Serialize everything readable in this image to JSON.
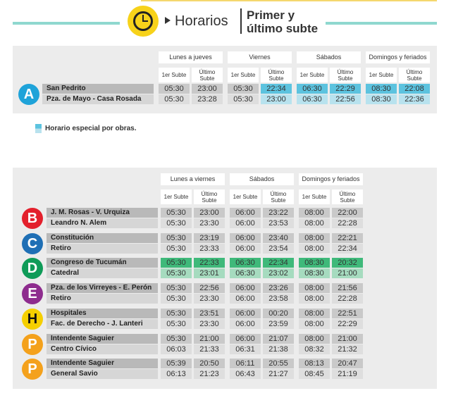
{
  "header": {
    "title": "Horarios",
    "subtitle": [
      "Primer y",
      "último subte"
    ]
  },
  "table1": {
    "groups": [
      "Lunes a jueves",
      "Viernes",
      "Sábados",
      "Domingos y feriados"
    ],
    "col_first": "1er Subte",
    "col_last": "Último Subte",
    "special_colors": [
      "#5cc3df",
      "#b8e2ee"
    ],
    "lines": [
      {
        "letter": "A",
        "color": "#1fa3d9",
        "letter_color": "#ffffff",
        "special_cells": [
          3,
          4,
          5,
          6,
          7
        ],
        "rows": [
          {
            "station": "San Pedrito",
            "times": [
              "05:30",
              "23:00",
              "05:30",
              "22:34",
              "06:30",
              "22:29",
              "08:30",
              "22:08"
            ]
          },
          {
            "station": "Pza. de Mayo - Casa Rosada",
            "times": [
              "05:30",
              "23:28",
              "05:30",
              "23:00",
              "06:30",
              "22:56",
              "08:30",
              "22:36"
            ]
          }
        ]
      }
    ],
    "legend": "Horario especial por obras."
  },
  "table2": {
    "groups": [
      "Lunes a viernes",
      "Sábados",
      "Domingos y feriados"
    ],
    "col_first": "1er Subte",
    "col_last": "Último Subte",
    "special_colors": [
      "#3fb97a",
      "#a6dbbf"
    ],
    "lines": [
      {
        "letter": "B",
        "color": "#e3202c",
        "letter_color": "#ffffff",
        "special_cells": [],
        "rows": [
          {
            "station": "J. M. Rosas - V. Urquiza",
            "times": [
              "05:30",
              "23:00",
              "06:00",
              "23:22",
              "08:00",
              "22:00"
            ]
          },
          {
            "station": "Leandro N. Alem",
            "times": [
              "05:30",
              "23:30",
              "06:00",
              "23:53",
              "08:00",
              "22:28"
            ]
          }
        ]
      },
      {
        "letter": "C",
        "color": "#1f6fb5",
        "letter_color": "#ffffff",
        "special_cells": [],
        "rows": [
          {
            "station": "Constitución",
            "times": [
              "05:30",
              "23:19",
              "06:00",
              "23:40",
              "08:00",
              "22:21"
            ]
          },
          {
            "station": "Retiro",
            "times": [
              "05:30",
              "23:33",
              "06:00",
              "23:54",
              "08:00",
              "22:34"
            ]
          }
        ]
      },
      {
        "letter": "D",
        "color": "#0f9b58",
        "letter_color": "#ffffff",
        "special_cells": [
          0,
          1,
          2,
          3,
          4,
          5
        ],
        "rows": [
          {
            "station": "Congreso de Tucumán",
            "times": [
              "05:30",
              "22:33",
              "06:30",
              "22:34",
              "08:30",
              "20:32"
            ]
          },
          {
            "station": "Catedral",
            "times": [
              "05:30",
              "23:01",
              "06:30",
              "23:02",
              "08:30",
              "21:00"
            ]
          }
        ]
      },
      {
        "letter": "E",
        "color": "#8e2c8e",
        "letter_color": "#ffffff",
        "special_cells": [],
        "rows": [
          {
            "station": "Pza. de los Virreyes - E. Perón",
            "times": [
              "05:30",
              "22:56",
              "06:00",
              "23:26",
              "08:00",
              "21:56"
            ]
          },
          {
            "station": "Retiro",
            "times": [
              "05:30",
              "23:30",
              "06:00",
              "23:58",
              "08:00",
              "22:28"
            ]
          }
        ]
      },
      {
        "letter": "H",
        "color": "#f5cf00",
        "letter_color": "#111111",
        "special_cells": [],
        "rows": [
          {
            "station": "Hospitales",
            "times": [
              "05:30",
              "23:51",
              "06:00",
              "00:20",
              "08:00",
              "22:51"
            ]
          },
          {
            "station": "Fac. de Derecho - J. Lanteri",
            "times": [
              "05:30",
              "23:30",
              "06:00",
              "23:59",
              "08:00",
              "22:29"
            ]
          }
        ]
      },
      {
        "letter": "P",
        "color": "#f4a11c",
        "letter_color": "#ffffff",
        "special_cells": [],
        "rows": [
          {
            "station": "Intendente Saguier",
            "times": [
              "05:30",
              "21:00",
              "06:00",
              "21:07",
              "08:00",
              "21:00"
            ]
          },
          {
            "station": "Centro Cívico",
            "times": [
              "06:03",
              "21:33",
              "06:31",
              "21:38",
              "08:32",
              "21:32"
            ]
          }
        ]
      },
      {
        "letter": "P",
        "color": "#f4a11c",
        "letter_color": "#ffffff",
        "special_cells": [],
        "rows": [
          {
            "station": "Intendente Saguier",
            "times": [
              "05:39",
              "20:50",
              "06:11",
              "20:55",
              "08:13",
              "20:47"
            ]
          },
          {
            "station": "General Savio",
            "times": [
              "06:13",
              "21:23",
              "06:43",
              "21:27",
              "08:45",
              "21:19"
            ]
          }
        ]
      }
    ]
  }
}
